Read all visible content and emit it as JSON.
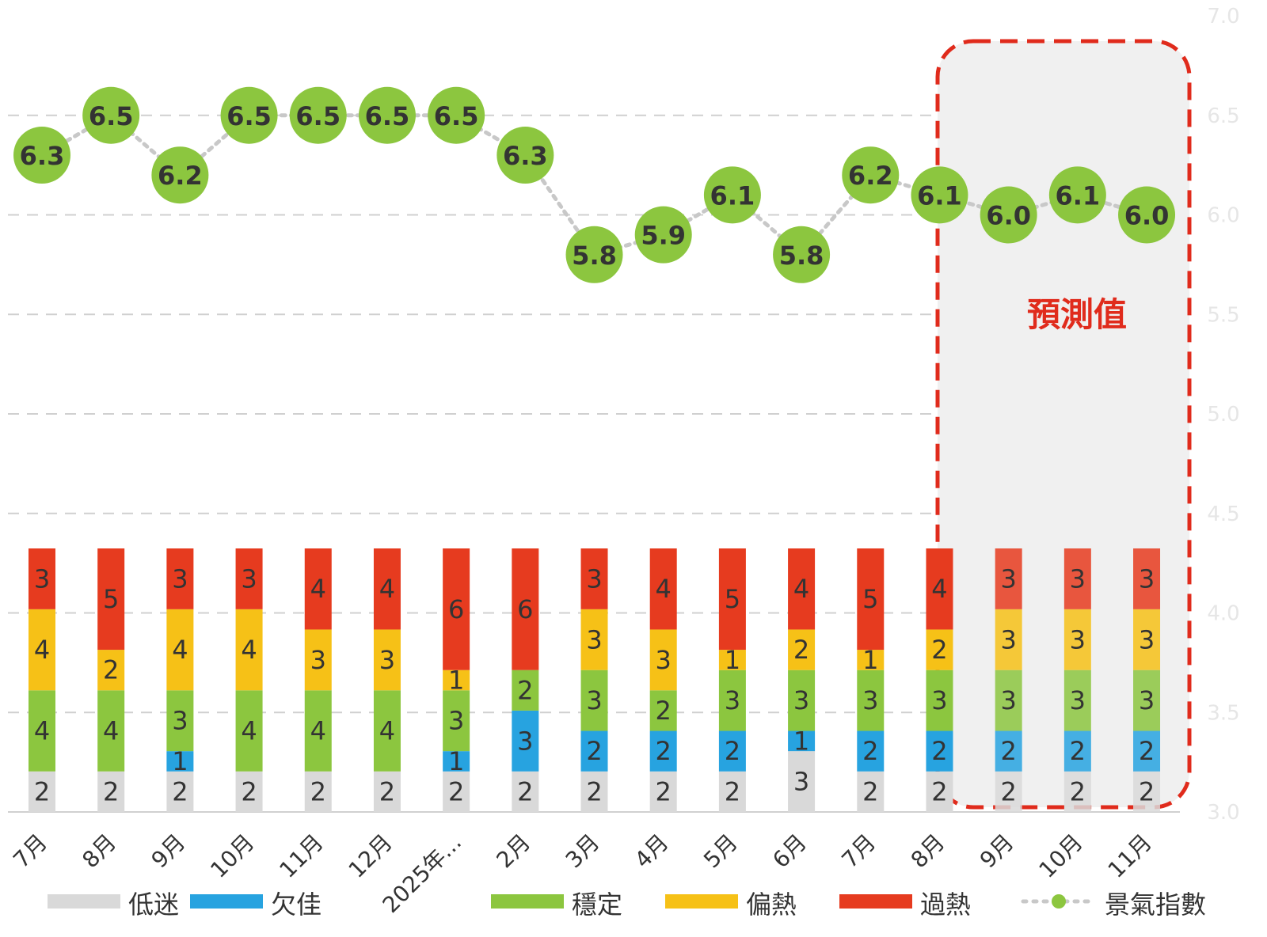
{
  "chart_data": {
    "type": "bar",
    "subtype": "stacked-bar-with-line",
    "categories": [
      "7月",
      "8月",
      "9月",
      "10月",
      "11月",
      "12月",
      "2025年...",
      "2月",
      "3月",
      "4月",
      "5月",
      "6月",
      "7月",
      "8月",
      "9月",
      "10月",
      "11月"
    ],
    "series": [
      {
        "name": "低迷",
        "color": "#d9d9d9",
        "values": [
          2,
          2,
          2,
          2,
          2,
          2,
          2,
          2,
          2,
          2,
          2,
          3,
          2,
          2,
          2,
          2,
          2
        ]
      },
      {
        "name": "欠佳",
        "color": "#27a3e0",
        "values": [
          0,
          0,
          1,
          0,
          0,
          0,
          1,
          3,
          2,
          2,
          2,
          1,
          2,
          2,
          2,
          2,
          2
        ]
      },
      {
        "name": "穩定",
        "color": "#8cc63f",
        "values": [
          4,
          4,
          3,
          4,
          4,
          4,
          3,
          2,
          3,
          2,
          3,
          3,
          3,
          3,
          3,
          3,
          3
        ]
      },
      {
        "name": "偏熱",
        "color": "#f6c117",
        "values": [
          4,
          2,
          4,
          4,
          3,
          3,
          1,
          0,
          3,
          3,
          1,
          2,
          1,
          2,
          3,
          3,
          3
        ]
      },
      {
        "name": "過熱",
        "color": "#e63b1f",
        "values": [
          3,
          5,
          3,
          3,
          4,
          4,
          6,
          6,
          3,
          4,
          5,
          4,
          5,
          4,
          3,
          3,
          3
        ]
      }
    ],
    "line": {
      "name": "景氣指數",
      "color": "#8cc63f",
      "values": [
        6.3,
        6.5,
        6.2,
        6.5,
        6.5,
        6.5,
        6.5,
        6.3,
        5.8,
        5.9,
        6.1,
        5.8,
        6.2,
        6.1,
        6.0,
        6.1,
        6.0
      ]
    },
    "y2_ticks": [
      "3.0",
      "3.5",
      "4.0",
      "4.5",
      "5.0",
      "5.5",
      "6.0",
      "6.5",
      "7.0"
    ],
    "y2lim": [
      3.0,
      7.0
    ],
    "ylim": [
      0,
      13
    ],
    "forecast": {
      "label": "預測值",
      "start_index": 14,
      "end_index": 16,
      "color": "#e02b1c"
    },
    "legend_position": "bottom",
    "grid": true
  }
}
